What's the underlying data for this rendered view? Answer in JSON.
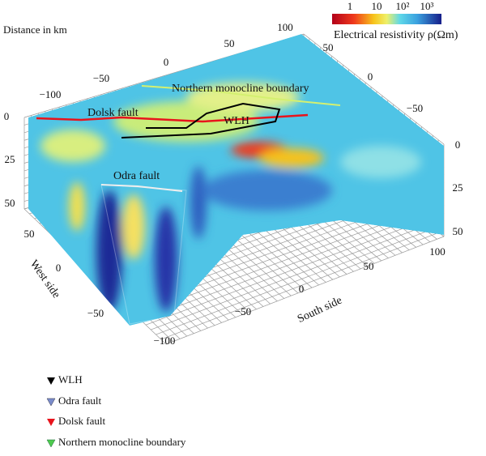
{
  "colorbar": {
    "label": "Electrical resistivity ρ(Ωm)",
    "ticks": [
      "1",
      "10",
      "10²",
      "10³"
    ]
  },
  "axis_title": "Distance in km",
  "north_ticks": [
    "100",
    "50",
    "0",
    "−50",
    "−100"
  ],
  "east_ticks": [
    "50",
    "0",
    "−50"
  ],
  "depth_left_ticks": [
    "0",
    "25",
    "50"
  ],
  "depth_right_ticks": [
    "0",
    "25",
    "50"
  ],
  "west_axis": {
    "title": "West side",
    "ticks": [
      "50",
      "0",
      "−50"
    ]
  },
  "south_axis": {
    "title": "South side",
    "ticks": [
      "−100",
      "−50",
      "0",
      "50",
      "100"
    ]
  },
  "annotations": {
    "northern": "Northern monocline boundary",
    "dolsk": "Dolsk fault",
    "wlh": "WLH",
    "odra": "Odra fault"
  },
  "legend": [
    "WLH",
    "Odra fault",
    "Dolsk fault",
    "Northern monocline boundary"
  ]
}
